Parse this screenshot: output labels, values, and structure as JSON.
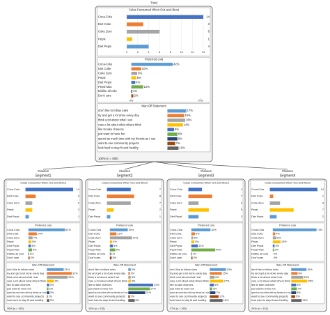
{
  "tree": {
    "root": {
      "heading": "Total",
      "colas": {
        "title": "Colas Consumed When Out and About",
        "categories": [
          "Coca-Cola",
          "Diet Coke",
          "Coke Zero",
          "Pepsi",
          "Diet Pepsi"
        ],
        "values": [
          14,
          3,
          6,
          1,
          4
        ],
        "colors": [
          "#4472c4",
          "#ed7d31",
          "#a5a5a5",
          "#ffc000",
          "#5b9bd5"
        ],
        "xlim": [
          0,
          14
        ],
        "xticks": [
          0,
          2,
          4,
          6,
          8,
          10,
          12,
          14
        ]
      },
      "preferred": {
        "title": "Preferred cola",
        "categories": [
          "Coca-Cola",
          "Diet Coke",
          "Coke Zero",
          "Pepsi",
          "Diet Pepsi",
          "Pepsi Max",
          "Dislike all cola",
          "Don't care"
        ],
        "values": [
          42,
          10,
          6,
          5,
          4,
          12,
          1,
          2
        ],
        "value_labels": [
          "42%",
          "10%",
          "6%",
          "5%",
          "4%",
          "12%",
          "1%",
          "2%"
        ],
        "colors": [
          "#5b9bd5",
          "#ed7d31",
          "#a5a5a5",
          "#ffc000",
          "#4472c4",
          "#70ad47",
          "#264478",
          "#9e480e"
        ],
        "xlim": [
          0,
          70
        ],
        "xticks": [
          {
            "value": 0,
            "label": "0%"
          },
          {
            "value": 70,
            "label": "70%"
          }
        ]
      },
      "statements": {
        "title": "Wan-Off Statement",
        "categories": [
          "don't like to follow rules",
          "try and get a lot done every day",
          "think a lot about what I eat",
          "care a lot about what others think",
          "like to take chances",
          "just want to have fun",
          "spend as much time with my friends as I can",
          "want to see community projects",
          "look hard to stay fit and healthy"
        ],
        "values": [
          17,
          15,
          16,
          14,
          6,
          9,
          9,
          7,
          10
        ],
        "value_labels": [
          "17%",
          "15%",
          "16%",
          "14%",
          "6%",
          "9%",
          "9%",
          "7%",
          "10%"
        ],
        "colors": [
          "#5b9bd5",
          "#ed7d31",
          "#a5a5a5",
          "#ffc000",
          "#4472c4",
          "#70ad47",
          "#264478",
          "#9e480e",
          "#636363"
        ]
      },
      "footer": "100% (n = 600)"
    },
    "segments": [
      {
        "heading": [
          "Classes",
          "Segment1"
        ],
        "colas": {
          "title": "Colas Consumed When Out and About",
          "categories": [
            "Coca-Cola",
            "Diet Coke",
            "Coke Zero",
            "Pepsi",
            "Diet Pepsi"
          ],
          "values": [
            14,
            3,
            2,
            2,
            1
          ]
        },
        "preferred": {
          "title": "Preferred cola",
          "categories": [
            "Coca-Cola",
            "Diet Coke",
            "Coke Zero",
            "Pepsi",
            "Diet Pepsi",
            "Pepsi Max",
            "Dislike all cola",
            "Don't care"
          ],
          "values": [
            61,
            14,
            7,
            5,
            4,
            6,
            1,
            2
          ],
          "value_labels": [
            "61%",
            "14%",
            "7%",
            "5%",
            "4%",
            "6%",
            "1%",
            "2%"
          ]
        },
        "statements": {
          "title": "Wan-Off Statement",
          "categories": [
            "don't like to follow rules",
            "try and get a lot done every day",
            "think a lot about what I eat",
            "care a lot about what others think",
            "like to take chances",
            "just want to have fun",
            "spend as much time with my friends as I can",
            "want to see community projects",
            "look hard to stay fit and healthy"
          ],
          "values": [
            21,
            31,
            26,
            9,
            3,
            2,
            3,
            1,
            3
          ],
          "value_labels": [
            "21%",
            "31%",
            "26%",
            "9%",
            "3%",
            "2%",
            "3%",
            "1%",
            "3%"
          ]
        },
        "footer": "30% (n = 182)"
      },
      {
        "heading": [
          "Classes",
          "Segment2"
        ],
        "colas": {
          "title": "Colas Consumed When Out and About",
          "categories": [
            "Coca-Cola",
            "Diet Coke",
            "Coke Zero",
            "Pepsi",
            "Diet Pepsi"
          ],
          "values": [
            7,
            8,
            7,
            2,
            1
          ]
        },
        "preferred": {
          "title": "Preferred cola",
          "categories": [
            "Coca-Cola",
            "Diet Coke",
            "Coke Zero",
            "Pepsi",
            "Diet Pepsi",
            "Pepsi Max",
            "Dislike all cola",
            "Don't care"
          ],
          "values": [
            30,
            11,
            37,
            4,
            5,
            9,
            1,
            3
          ],
          "value_labels": [
            "30%",
            "11%",
            "37%",
            "4%",
            "5%",
            "9%",
            "1%",
            "3%"
          ]
        },
        "statements": {
          "title": "Wan-Off Statement",
          "categories": [
            "don't like to follow rules",
            "try and get a lot done every day",
            "think a lot about what I eat",
            "care a lot about what others think",
            "like to take chances",
            "just want to have fun",
            "spend as much time with my friends as I can",
            "want to see community projects",
            "look hard to stay fit and healthy"
          ],
          "values": [
            3,
            2,
            3,
            3,
            31,
            27,
            21,
            2,
            8
          ],
          "value_labels": [
            "3%",
            "2%",
            "3%",
            "3%",
            "31%",
            "27%",
            "21%",
            "2%",
            "8%"
          ]
        },
        "footer": "19% (n = 115)"
      },
      {
        "heading": [
          "Classes",
          "Segment3"
        ],
        "colas": {
          "title": "Colas Consumed When Out and About",
          "categories": [
            "Coca-Cola",
            "Diet Coke",
            "Coke Zero",
            "Pepsi",
            "Diet Pepsi"
          ],
          "values": [
            4,
            7,
            3,
            6,
            3
          ]
        },
        "preferred": {
          "title": "Preferred cola",
          "categories": [
            "Coca-Cola",
            "Diet Coke",
            "Coke Zero",
            "Pepsi",
            "Diet Pepsi",
            "Pepsi Max",
            "Dislike all cola",
            "Don't care"
          ],
          "values": [
            32,
            6,
            3,
            5,
            11,
            40,
            1,
            2
          ],
          "value_labels": [
            "32%",
            "6%",
            "3%",
            "5%",
            "11%",
            "40%",
            "1%",
            "2%"
          ]
        },
        "statements": {
          "title": "Wan-Off Statement",
          "categories": [
            "don't like to follow rules",
            "try and get a lot done every day",
            "think a lot about what I eat",
            "care a lot about what others think",
            "like to take chances",
            "just want to have fun",
            "spend as much time with my friends as I can",
            "want to see community projects",
            "look hard to stay fit and healthy"
          ],
          "values": [
            20,
            15,
            6,
            17,
            5,
            3,
            7,
            11,
            16
          ],
          "value_labels": [
            "20%",
            "15%",
            "6%",
            "17%",
            "5%",
            "3%",
            "7%",
            "11%",
            "16%"
          ]
        },
        "footer": "27% (n = 165)"
      },
      {
        "heading": [
          "Classes",
          "Segment4"
        ],
        "colas": {
          "title": "Colas Consumed When Out and About",
          "categories": [
            "Coca-Cola",
            "Diet Coke",
            "Coke Zero",
            "Pepsi",
            "Diet Pepsi"
          ],
          "values": [
            14,
            1,
            3,
            7,
            2
          ]
        },
        "preferred": {
          "title": "Preferred cola",
          "categories": [
            "Coca-Cola",
            "Diet Coke",
            "Coke Zero",
            "Pepsi",
            "Diet Pepsi",
            "Pepsi Max",
            "Dislike all cola",
            "Don't care"
          ],
          "values": [
            73,
            4,
            6,
            13,
            3,
            2,
            0,
            0
          ],
          "value_labels": [
            "73%",
            "4%",
            "6%",
            "13%",
            "3%",
            "2%",
            "0%",
            "0%"
          ]
        },
        "statements": {
          "title": "Wan-Off Statement",
          "categories": [
            "don't like to follow rules",
            "try and get a lot done every day",
            "think a lot about what I eat",
            "care a lot about what others think",
            "like to take chances",
            "just want to have fun",
            "spend as much time with my friends as I can",
            "want to see community projects",
            "look hard to stay fit and healthy"
          ],
          "values": [
            19,
            8,
            15,
            20,
            6,
            7,
            6,
            5,
            13
          ],
          "value_labels": [
            "19%",
            "8%",
            "15%",
            "20%",
            "6%",
            "7%",
            "6%",
            "5%",
            "13%"
          ]
        },
        "footer": "24% (n = 141)"
      }
    ]
  }
}
